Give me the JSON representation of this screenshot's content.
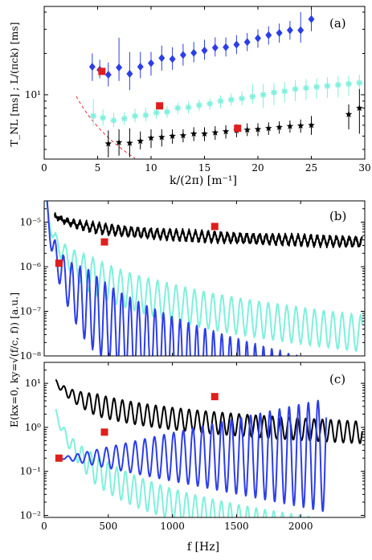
{
  "chart_data": [
    {
      "type": "scatter",
      "panel_label": "(a)",
      "xlabel": "k/(2π) [m⁻¹]",
      "ylabel": "T_NL [ms] ; L/(πck) [ms]",
      "xlim": [
        0,
        30
      ],
      "ylim": [
        3.4,
        44
      ],
      "yscale": "log",
      "xticks": [
        0,
        5,
        10,
        15,
        20,
        25,
        30
      ],
      "yticks": [
        {
          "value": 10,
          "label": "10¹"
        }
      ],
      "colors": {
        "blue": "#2d3ee8",
        "cyan": "#7ff0dc",
        "black": "#000000",
        "curve": "#e8303a",
        "square": "#e01e1e"
      },
      "curve": {
        "name": "L/(πck)",
        "coef": 92,
        "xmin": 3,
        "xmax": 30,
        "style": "dashed"
      },
      "series": [
        {
          "name": "blue",
          "marker": "diamond",
          "x": [
            4.5,
            5.2,
            6.0,
            7.0,
            8.0,
            9.0,
            10.0,
            11.0,
            12.0,
            13.0,
            14.0,
            15.0,
            16.0,
            17.0,
            18.0,
            19.0,
            20.0,
            21.0,
            22.0,
            23.0,
            24.0,
            25.0
          ],
          "y": [
            16.0,
            15.2,
            14.0,
            15.8,
            14.2,
            16.0,
            17.0,
            18.5,
            18.2,
            19.5,
            20.2,
            21.0,
            22.0,
            22.2,
            23.2,
            24.2,
            25.8,
            27.2,
            28.2,
            29.5,
            29.5,
            35.5
          ],
          "err_lo": [
            12.6,
            13.2,
            11.5,
            12.6,
            10.8,
            13.2,
            13.8,
            15.0,
            15.2,
            16.3,
            17.2,
            18.0,
            19.0,
            19.0,
            19.8,
            20.8,
            22.0,
            23.2,
            24.0,
            25.2,
            24.0,
            29.0
          ],
          "err_hi": [
            20.0,
            18.0,
            17.2,
            26.0,
            20.5,
            20.5,
            20.5,
            22.8,
            22.2,
            23.5,
            24.2,
            25.2,
            26.2,
            26.2,
            27.2,
            28.2,
            30.0,
            31.5,
            33.0,
            34.5,
            40.0,
            44.0
          ]
        },
        {
          "name": "cyan",
          "marker": "asterisk",
          "x": [
            4.6,
            5.5,
            6.5,
            7.5,
            8.5,
            9.5,
            10.5,
            11.5,
            12.5,
            13.5,
            14.5,
            15.5,
            16.5,
            17.5,
            18.5,
            19.5,
            20.5,
            21.5,
            22.5,
            23.5,
            24.5,
            25.5,
            26.5,
            27.5,
            28.5,
            29.5
          ],
          "y": [
            7.0,
            6.8,
            6.5,
            6.7,
            7.0,
            7.1,
            7.4,
            7.5,
            8.0,
            8.1,
            8.4,
            8.6,
            9.0,
            9.2,
            9.4,
            9.7,
            10.0,
            10.4,
            10.6,
            11.0,
            11.2,
            11.4,
            11.6,
            11.8,
            12.0,
            12.2
          ],
          "err_lo": [
            5.9,
            6.0,
            5.8,
            6.0,
            6.3,
            6.4,
            6.7,
            6.8,
            7.2,
            7.3,
            7.6,
            7.8,
            8.0,
            8.3,
            8.4,
            8.6,
            8.0,
            8.4,
            8.8,
            9.0,
            9.2,
            9.4,
            9.5,
            9.6,
            9.8,
            10.0
          ],
          "err_hi": [
            9.3,
            7.8,
            7.4,
            7.5,
            7.9,
            8.0,
            8.2,
            8.3,
            8.8,
            8.9,
            9.2,
            9.4,
            9.9,
            10.2,
            10.6,
            12.0,
            12.0,
            12.2,
            12.4,
            12.8,
            13.0,
            13.2,
            13.4,
            13.6,
            13.8,
            14.0
          ]
        },
        {
          "name": "black",
          "marker": "star",
          "x": [
            6.0,
            7.0,
            8.0,
            9.0,
            10.0,
            11.0,
            12.0,
            13.0,
            14.0,
            15.0,
            16.0,
            17.0,
            18.0,
            19.0,
            20.0,
            21.0,
            22.0,
            23.0,
            24.0,
            25.0,
            28.5,
            29.5
          ],
          "y": [
            4.4,
            4.5,
            4.45,
            4.6,
            4.85,
            4.9,
            5.0,
            5.05,
            5.2,
            5.2,
            5.3,
            5.4,
            5.5,
            5.55,
            5.6,
            5.7,
            5.8,
            5.9,
            5.95,
            6.0,
            7.2,
            8.0
          ],
          "err_lo": [
            3.5,
            3.6,
            3.5,
            4.0,
            4.1,
            4.2,
            4.4,
            4.5,
            4.6,
            4.6,
            4.7,
            4.8,
            4.9,
            5.0,
            5.0,
            5.1,
            5.2,
            5.3,
            5.3,
            5.1,
            5.6,
            5.2
          ],
          "err_hi": [
            5.5,
            5.6,
            5.7,
            5.4,
            5.6,
            5.6,
            5.6,
            5.6,
            5.8,
            5.8,
            5.9,
            6.0,
            6.1,
            6.2,
            6.2,
            6.3,
            6.4,
            6.5,
            6.6,
            7.0,
            8.5,
            11.0
          ]
        }
      ],
      "highlight": {
        "x": [
          5.4,
          10.8,
          18.1
        ],
        "y": [
          14.8,
          8.3,
          5.7
        ]
      }
    },
    {
      "type": "line",
      "panel_label": "(b)",
      "xlabel": "",
      "ylabel": "E(kx=0, ky=√(f/c, f)) [a.u.]",
      "xlim": [
        0,
        2500
      ],
      "ylim": [
        1e-08,
        3e-05
      ],
      "yscale": "log",
      "yticks": [
        {
          "value": 1e-05,
          "label": "10⁻⁵"
        },
        {
          "value": 1e-06,
          "label": "10⁻⁶"
        },
        {
          "value": 1e-07,
          "label": "10⁻⁷"
        },
        {
          "value": 1e-08,
          "label": "10⁻⁸"
        }
      ],
      "colors": {
        "blue": "#2d3ee8",
        "cyan": "#7ff0dc",
        "black": "#000000",
        "square": "#e01e1e"
      },
      "series": [
        {
          "name": "black",
          "f0": 80,
          "f1": 2480,
          "a": 1.3e-05,
          "b": 0.4,
          "decay": 0.0,
          "mod": 0.1,
          "period": 50,
          "noise": 0.05
        },
        {
          "name": "cyan",
          "f0": 20,
          "f1": 2480,
          "a": 3.5e-06,
          "b": 1.2,
          "decay": 0.00035,
          "mod": 0.4,
          "period": 72,
          "noise": 0.03
        },
        {
          "name": "blue",
          "f0": 20,
          "f1": 2250,
          "a": 1.5e-06,
          "b": 1.8,
          "decay": 0.0008,
          "mod": 0.85,
          "period": 65,
          "noise": 0.02
        }
      ],
      "highlight": {
        "x": [
          115,
          470,
          1330
        ],
        "y": [
          1.2e-06,
          3.6e-06,
          8e-06
        ]
      }
    },
    {
      "type": "line",
      "panel_label": "(c)",
      "xlabel": "f [Hz]",
      "ylabel": "",
      "xlim": [
        0,
        2500
      ],
      "ylim": [
        0.009,
        30
      ],
      "yscale": "log",
      "xticks": [
        0,
        500,
        1000,
        1500,
        2000
      ],
      "yticks": [
        {
          "value": 10,
          "label": "10¹"
        },
        {
          "value": 1,
          "label": "10⁰"
        },
        {
          "value": 0.1,
          "label": "10⁻¹"
        },
        {
          "value": 0.01,
          "label": "10⁻²"
        }
      ],
      "colors": {
        "blue": "#2d3ee8",
        "cyan": "#7ff0dc",
        "black": "#000000",
        "square": "#e01e1e"
      },
      "series": [
        {
          "name": "black",
          "f0": 90,
          "f1": 2480,
          "a": 10,
          "b": 0.8,
          "decay": 0.0,
          "mod": 0.25,
          "period": 65
        },
        {
          "name": "cyan",
          "f0": 90,
          "f1": 2480,
          "a": 1.8,
          "b": 2.0,
          "decay": 0.0,
          "mod": 0.35,
          "period": 68
        },
        {
          "name": "blue",
          "f0": 110,
          "f1": 2200,
          "a": 0.22,
          "b": 0.0,
          "decay": 0.0,
          "mod": 0.0,
          "period": 75
        }
      ],
      "highlight": {
        "x": [
          115,
          470,
          1330
        ],
        "y": [
          0.2,
          0.78,
          5.0
        ]
      }
    }
  ]
}
